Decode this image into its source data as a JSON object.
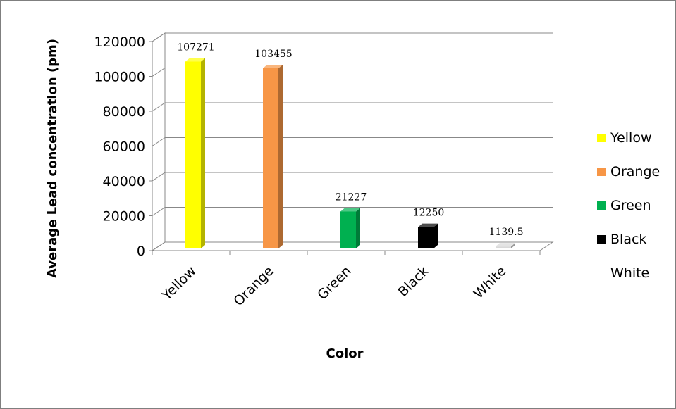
{
  "chart_data": {
    "type": "bar",
    "style": "3d-column",
    "categories": [
      "Yellow",
      "Orange",
      "Green",
      "Black",
      "White"
    ],
    "values": [
      107271,
      103455,
      21227,
      12250,
      1139.5
    ],
    "value_labels": [
      "107271",
      "103455",
      "21227",
      "12250",
      "1139.5"
    ],
    "colors": [
      "#ffff00",
      "#f79646",
      "#00b050",
      "#000000",
      "#d9d9d9"
    ],
    "xlabel": "Color",
    "ylabel": "Average Lead concentration (pm)",
    "ylim": [
      0,
      120000
    ],
    "yticks": [
      0,
      20000,
      40000,
      60000,
      80000,
      100000,
      120000
    ],
    "ytick_labels": [
      "0",
      "20000",
      "40000",
      "60000",
      "80000",
      "100000",
      "120000"
    ],
    "grid": true,
    "legend": {
      "placement": "right",
      "entries": [
        {
          "label": "Yellow",
          "color": "#ffff00"
        },
        {
          "label": "Orange",
          "color": "#f79646"
        },
        {
          "label": "Green",
          "color": "#00b050"
        },
        {
          "label": "Black",
          "color": "#000000"
        },
        {
          "label": "White",
          "color": "#ffffff"
        }
      ]
    }
  }
}
